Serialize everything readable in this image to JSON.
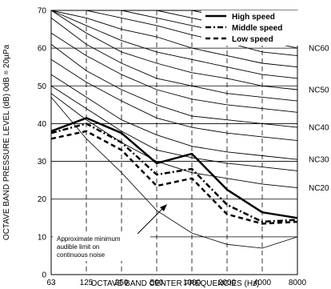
{
  "chart_data": {
    "type": "line",
    "xlabel": "OCTAVE BAND CENTER FREQUENCIES (Hz)",
    "ylabel": "OCTAVE BAND PRESSURE LEVEL (dB) 0dB = 20µPa",
    "x_categories": [
      "63",
      "125",
      "250",
      "500",
      "1000",
      "2000",
      "4000",
      "8000"
    ],
    "ylim": [
      0,
      70
    ],
    "y_ticks": [
      0,
      10,
      20,
      30,
      40,
      50,
      60,
      70
    ],
    "grid": "horizontal solid every 10 dB, vertical dashed at each frequency",
    "legend_position": "top-right",
    "series": [
      {
        "name": "High speed",
        "style": "solid",
        "color": "#000000",
        "values": [
          38,
          41.5,
          37.5,
          29.5,
          32,
          22.5,
          16.5,
          15
        ]
      },
      {
        "name": "Middle speed",
        "style": "dash-dot",
        "color": "#000000",
        "values": [
          37.5,
          40,
          35,
          26.5,
          28,
          18.5,
          14,
          14.5
        ]
      },
      {
        "name": "Low speed",
        "style": "dashed",
        "color": "#000000",
        "values": [
          36,
          38,
          33,
          23.5,
          25.5,
          16,
          13.5,
          14
        ]
      }
    ],
    "nc_curves": [
      {
        "label": "",
        "values": [
          70,
          70,
          70,
          70,
          70,
          70,
          70,
          70
        ]
      },
      {
        "label": "",
        "values": [
          70,
          70,
          70,
          70,
          70,
          70,
          70,
          68
        ]
      },
      {
        "label": "",
        "values": [
          70,
          70,
          70,
          70,
          70,
          70,
          68,
          66
        ]
      },
      {
        "label": "",
        "values": [
          70,
          70,
          70,
          70,
          70,
          68,
          66,
          64
        ]
      },
      {
        "label": "",
        "values": [
          70,
          70,
          70,
          70,
          68,
          66,
          64,
          62
        ]
      },
      {
        "label": "NC60",
        "values": [
          70,
          70,
          70,
          68,
          66,
          64,
          62,
          60
        ]
      },
      {
        "label": "",
        "values": [
          70,
          70,
          68,
          66,
          63.5,
          61.5,
          59,
          58
        ]
      },
      {
        "label": "",
        "values": [
          70,
          68,
          65,
          63,
          60,
          58,
          56,
          55
        ]
      },
      {
        "label": "",
        "values": [
          70,
          66,
          62,
          59,
          57,
          55,
          53,
          52
        ]
      },
      {
        "label": "NC50",
        "values": [
          70,
          64,
          59,
          56,
          53.5,
          52,
          50,
          49
        ]
      },
      {
        "label": "",
        "values": [
          68,
          61,
          56,
          52,
          50,
          48,
          47,
          46
        ]
      },
      {
        "label": "",
        "values": [
          64,
          58,
          53,
          49,
          46.5,
          45,
          44,
          43
        ]
      },
      {
        "label": "NC40",
        "values": [
          61,
          54,
          49,
          45,
          42,
          41,
          40,
          39
        ]
      },
      {
        "label": "",
        "values": [
          57,
          51,
          46,
          41.5,
          39,
          37.5,
          36.5,
          35.5
        ]
      },
      {
        "label": "NC30",
        "values": [
          53,
          47,
          41,
          37,
          34,
          32.5,
          31.5,
          30.5
        ]
      },
      {
        "label": "",
        "values": [
          50,
          44,
          38,
          33,
          31,
          29.5,
          28.5,
          27.5
        ]
      },
      {
        "label": "NC20",
        "values": [
          48,
          41,
          35,
          30,
          27,
          25.5,
          24,
          23
        ]
      }
    ],
    "threshold_curve": {
      "values": [
        47,
        36,
        27,
        17,
        11,
        8,
        7,
        10
      ]
    },
    "annotation": {
      "lines": [
        "Approximate minimum",
        "audible limit on",
        "continuous noise"
      ],
      "arrow_target": {
        "x_index": 3,
        "y": 16
      }
    }
  }
}
